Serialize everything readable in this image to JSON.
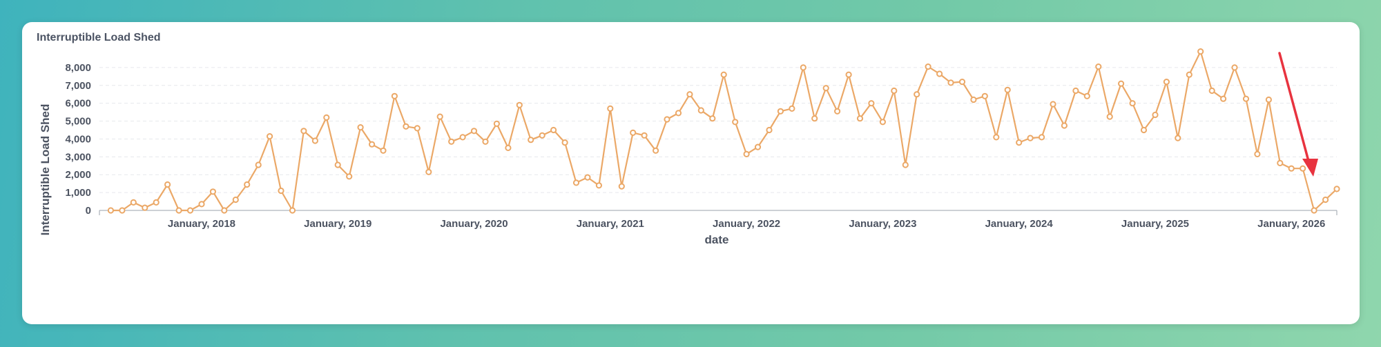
{
  "card": {
    "title": "Interruptible Load Shed"
  },
  "colors": {
    "line": "#eba867",
    "arrow": "#e8333f",
    "grid": "#e6e8ec"
  },
  "chart_data": {
    "type": "line",
    "title": "Interruptible Load Shed",
    "xlabel": "date",
    "ylabel": "Interruptible Load Shed",
    "ylim": [
      0,
      9000
    ],
    "yticks": [
      0,
      1000,
      2000,
      3000,
      4000,
      5000,
      6000,
      7000,
      8000
    ],
    "ytick_labels": [
      "0",
      "1,000",
      "2,000",
      "3,000",
      "4,000",
      "5,000",
      "6,000",
      "7,000",
      "8,000"
    ],
    "xlim": [
      "2017-04",
      "2026-05"
    ],
    "xticks": [
      "2018-01",
      "2019-01",
      "2020-01",
      "2021-01",
      "2022-01",
      "2023-01",
      "2024-01",
      "2025-01",
      "2026-01"
    ],
    "xtick_labels": [
      "January, 2018",
      "January, 2019",
      "January, 2020",
      "January, 2021",
      "January, 2022",
      "January, 2023",
      "January, 2024",
      "January, 2025",
      "January, 2026"
    ],
    "grid": true,
    "series": [
      {
        "start": "2017-05",
        "step": "month",
        "values": [
          0,
          0,
          450,
          150,
          450,
          1450,
          0,
          0,
          350,
          1050,
          0,
          600,
          1450,
          2550,
          4150,
          1100,
          0,
          4450,
          3900,
          5200,
          2550,
          1900,
          4650,
          3700,
          3350,
          6400,
          4700,
          4600,
          2150,
          5250,
          3850,
          4100,
          4450,
          3850,
          4850,
          3500,
          5900,
          3950,
          4200,
          4500,
          3800,
          1550,
          1850,
          1400,
          5700,
          1350,
          4350,
          4200,
          3350,
          5100,
          5450,
          6500,
          5600,
          5150,
          7600,
          4950,
          3150,
          3550,
          4500,
          5550,
          5700,
          8000,
          5150,
          6850,
          5550,
          7600,
          5150,
          6000,
          4950,
          6700,
          2550,
          6500,
          8050,
          7650,
          7150,
          7200,
          6200,
          6400,
          4100,
          6750,
          3800,
          4050,
          4100,
          5950,
          4750,
          6700,
          6400,
          8050,
          5250,
          7100,
          6000,
          4500,
          5350,
          7200,
          4050,
          7600,
          8900,
          6700,
          6250,
          8000,
          6250,
          3150,
          6200,
          2650,
          2350,
          2350,
          0,
          600,
          1200
        ]
      }
    ],
    "annotation": {
      "type": "arrow",
      "points_to": "2026-05"
    }
  }
}
